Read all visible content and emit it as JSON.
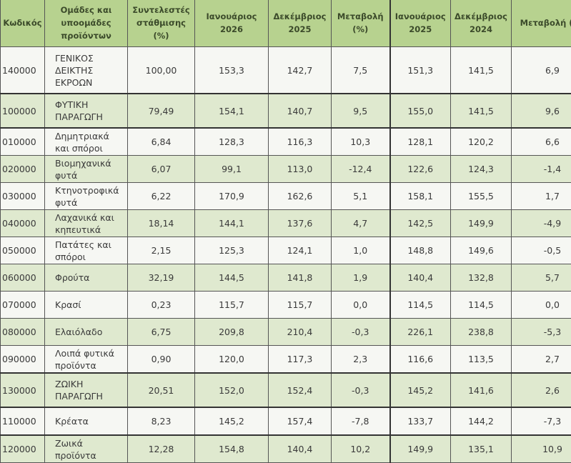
{
  "headers": [
    "Κωδικός",
    "Ομάδες και υποομάδες προϊόντων",
    "Συντελεστές στάθμισης (%)",
    "Ιανουάριος 2026",
    "Δεκέμβριος 2025",
    "Μεταβολή (%)",
    "Ιανουάριος 2025",
    "Δεκέμβριος 2024",
    "Μεταβολή (%)"
  ],
  "rows": [
    [
      "140000",
      "ΓΕΝΙΚΟΣ ΔΕΙΚΤΗΣ ΕΚΡΟΩΝ",
      "100,00",
      "153,3",
      "142,7",
      "7,5",
      "151,3",
      "141,5",
      "6,9"
    ],
    [
      "100000",
      "ΦΥΤΙΚΗ ΠΑΡΑΓΩΓΗ",
      "79,49",
      "154,1",
      "140,7",
      "9,5",
      "155,0",
      "141,5",
      "9,6"
    ],
    [
      "010000",
      "Δημητριακά και σπόροι",
      "6,84",
      "128,3",
      "116,3",
      "10,3",
      "128,1",
      "120,2",
      "6,6"
    ],
    [
      "020000",
      "Βιομηχανικά φυτά",
      "6,07",
      "99,1",
      "113,0",
      "-12,4",
      "122,6",
      "124,3",
      "-1,4"
    ],
    [
      "030000",
      "Κτηνοτροφικά φυτά",
      "6,22",
      "170,9",
      "162,6",
      "5,1",
      "158,1",
      "155,5",
      "1,7"
    ],
    [
      "040000",
      "Λαχανικά και κηπευτικά",
      "18,14",
      "144,1",
      "137,6",
      "4,7",
      "142,5",
      "149,9",
      "-4,9"
    ],
    [
      "050000",
      "Πατάτες και σπόροι",
      "2,15",
      "125,3",
      "124,1",
      "1,0",
      "148,8",
      "149,6",
      "-0,5"
    ],
    [
      "060000",
      "Φρούτα",
      "32,19",
      "144,5",
      "141,8",
      "1,9",
      "140,4",
      "132,8",
      "5,7"
    ],
    [
      "070000",
      "Κρασί",
      "0,23",
      "115,7",
      "115,7",
      "0,0",
      "114,5",
      "114,5",
      "0,0"
    ],
    [
      "080000",
      "Ελαιόλαδο",
      "6,75",
      "209,8",
      "210,4",
      "-0,3",
      "226,1",
      "238,8",
      "-5,3"
    ],
    [
      "090000",
      "Λοιπά φυτικά προϊόντα",
      "0,90",
      "120,0",
      "117,3",
      "2,3",
      "116,6",
      "113,5",
      "2,7"
    ],
    [
      "130000",
      "ΖΩΙΚΗ ΠΑΡΑΓΩΓΗ",
      "20,51",
      "152,0",
      "152,4",
      "-0,3",
      "145,2",
      "141,6",
      "2,6"
    ],
    [
      "110000",
      "Κρέατα",
      "8,23",
      "145,2",
      "157,4",
      "-7,8",
      "133,7",
      "144,2",
      "-7,3"
    ],
    [
      "120000",
      "Ζωικά προϊόντα",
      "12,28",
      "154,8",
      "140,4",
      "10,2",
      "149,9",
      "135,1",
      "10,9"
    ]
  ]
}
